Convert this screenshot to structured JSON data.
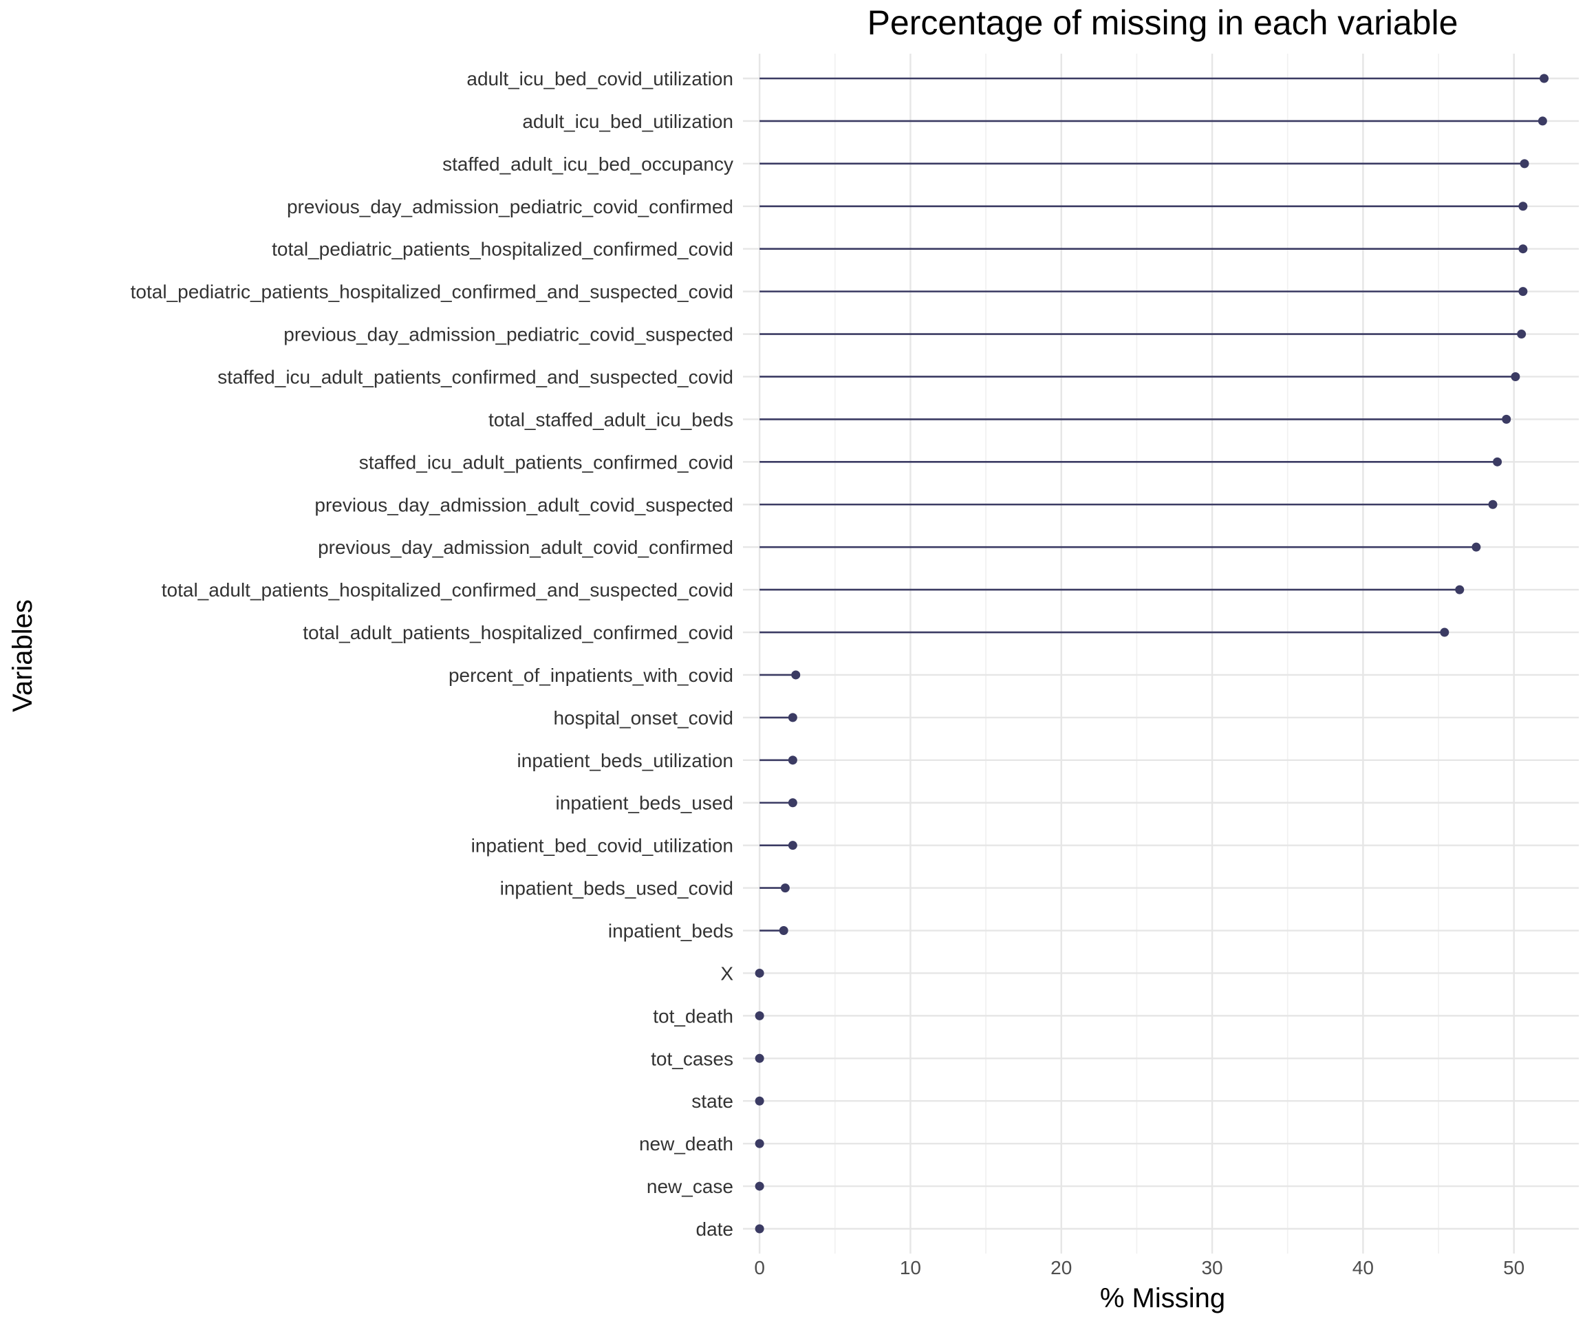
{
  "chart_data": {
    "type": "lollipop",
    "orientation": "horizontal",
    "title": "Percentage of missing in each variable",
    "xlabel": "% Missing",
    "ylabel": "Variables",
    "xlim": [
      -1.1,
      54.3
    ],
    "xticks": [
      0,
      10,
      20,
      30,
      40,
      50
    ],
    "grid": true,
    "legend": "none",
    "color": "#3b3b63",
    "grid_major_color": "#e6e6e6",
    "grid_minor_color": "#f0f0f0",
    "categories": [
      "adult_icu_bed_covid_utilization",
      "adult_icu_bed_utilization",
      "staffed_adult_icu_bed_occupancy",
      "previous_day_admission_pediatric_covid_confirmed",
      "total_pediatric_patients_hospitalized_confirmed_covid",
      "total_pediatric_patients_hospitalized_confirmed_and_suspected_covid",
      "previous_day_admission_pediatric_covid_suspected",
      "staffed_icu_adult_patients_confirmed_and_suspected_covid",
      "total_staffed_adult_icu_beds",
      "staffed_icu_adult_patients_confirmed_covid",
      "previous_day_admission_adult_covid_suspected",
      "previous_day_admission_adult_covid_confirmed",
      "total_adult_patients_hospitalized_confirmed_and_suspected_covid",
      "total_adult_patients_hospitalized_confirmed_covid",
      "percent_of_inpatients_with_covid",
      "hospital_onset_covid",
      "inpatient_beds_utilization",
      "inpatient_beds_used",
      "inpatient_bed_covid_utilization",
      "inpatient_beds_used_covid",
      "inpatient_beds",
      "X",
      "tot_death",
      "tot_cases",
      "state",
      "new_death",
      "new_case",
      "date"
    ],
    "values": [
      52.0,
      51.9,
      50.7,
      50.6,
      50.6,
      50.6,
      50.5,
      50.1,
      49.5,
      48.9,
      48.6,
      47.5,
      46.4,
      45.4,
      2.4,
      2.2,
      2.2,
      2.2,
      2.2,
      1.7,
      1.6,
      0,
      0,
      0,
      0,
      0,
      0,
      0
    ]
  }
}
